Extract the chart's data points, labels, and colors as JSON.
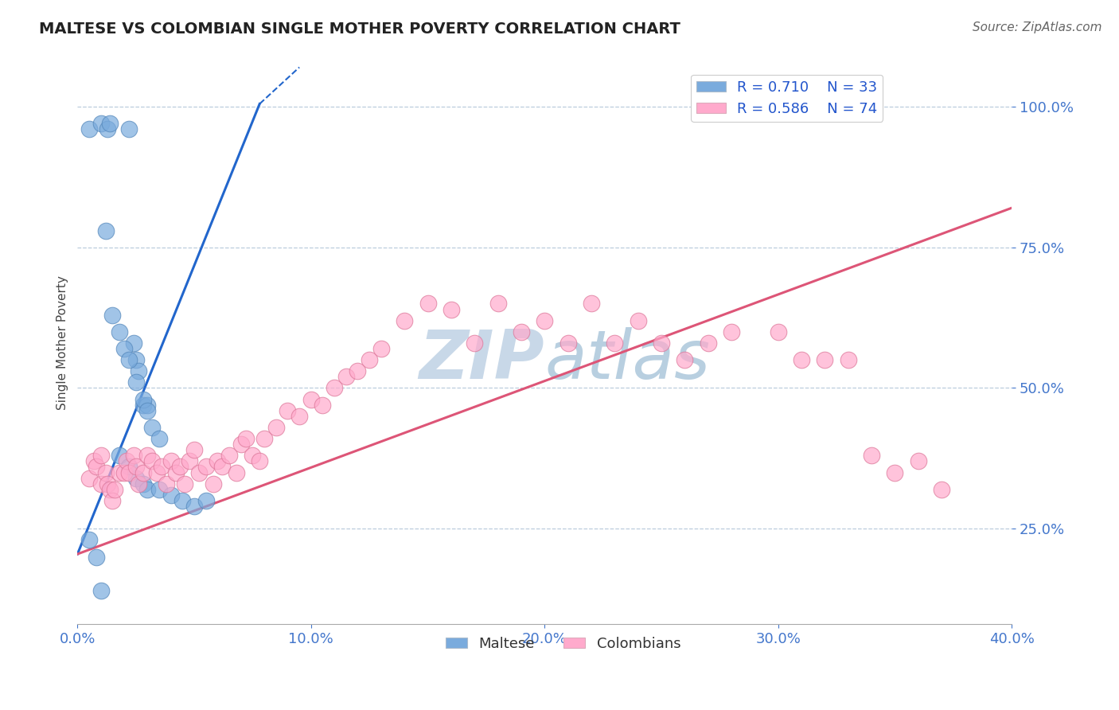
{
  "title": "MALTESE VS COLOMBIAN SINGLE MOTHER POVERTY CORRELATION CHART",
  "source_text": "Source: ZipAtlas.com",
  "ylabel": "Single Mother Poverty",
  "right_ytick_values": [
    0.25,
    0.5,
    0.75,
    1.0
  ],
  "xlim": [
    0.0,
    0.4
  ],
  "ylim": [
    0.08,
    1.08
  ],
  "xtick_values": [
    0.0,
    0.1,
    0.2,
    0.3,
    0.4
  ],
  "blue_R": 0.71,
  "blue_N": 33,
  "pink_R": 0.586,
  "pink_N": 74,
  "maltese_color": "#7aabdd",
  "colombian_color": "#ffaacc",
  "maltese_edge_color": "#5588bb",
  "colombian_edge_color": "#dd7799",
  "blue_line_color": "#2266cc",
  "pink_line_color": "#dd5577",
  "watermark_color_zip": "#c8d8e8",
  "watermark_color_atlas": "#c8d8e8",
  "background_color": "#ffffff",
  "grid_color": "#bbccdd",
  "legend_label_blue": "Maltese",
  "legend_label_pink": "Colombians",
  "blue_scatter_x": [
    0.005,
    0.01,
    0.013,
    0.014,
    0.022,
    0.024,
    0.025,
    0.026,
    0.028,
    0.03,
    0.012,
    0.015,
    0.018,
    0.02,
    0.022,
    0.025,
    0.028,
    0.03,
    0.032,
    0.035,
    0.018,
    0.022,
    0.025,
    0.028,
    0.03,
    0.035,
    0.04,
    0.045,
    0.05,
    0.055,
    0.005,
    0.008,
    0.01
  ],
  "blue_scatter_y": [
    0.96,
    0.97,
    0.96,
    0.97,
    0.96,
    0.58,
    0.55,
    0.53,
    0.47,
    0.47,
    0.78,
    0.63,
    0.6,
    0.57,
    0.55,
    0.51,
    0.48,
    0.46,
    0.43,
    0.41,
    0.38,
    0.36,
    0.34,
    0.33,
    0.32,
    0.32,
    0.31,
    0.3,
    0.29,
    0.3,
    0.23,
    0.2,
    0.14
  ],
  "pink_scatter_x": [
    0.005,
    0.007,
    0.008,
    0.01,
    0.01,
    0.012,
    0.013,
    0.014,
    0.015,
    0.016,
    0.018,
    0.02,
    0.021,
    0.022,
    0.024,
    0.025,
    0.026,
    0.028,
    0.03,
    0.032,
    0.034,
    0.036,
    0.038,
    0.04,
    0.042,
    0.044,
    0.046,
    0.048,
    0.05,
    0.052,
    0.055,
    0.058,
    0.06,
    0.062,
    0.065,
    0.068,
    0.07,
    0.072,
    0.075,
    0.078,
    0.08,
    0.085,
    0.09,
    0.095,
    0.1,
    0.105,
    0.11,
    0.115,
    0.12,
    0.125,
    0.13,
    0.14,
    0.15,
    0.16,
    0.17,
    0.18,
    0.19,
    0.2,
    0.21,
    0.22,
    0.23,
    0.24,
    0.25,
    0.26,
    0.27,
    0.28,
    0.3,
    0.31,
    0.32,
    0.33,
    0.34,
    0.35,
    0.36,
    0.37
  ],
  "pink_scatter_y": [
    0.34,
    0.37,
    0.36,
    0.38,
    0.33,
    0.35,
    0.33,
    0.32,
    0.3,
    0.32,
    0.35,
    0.35,
    0.37,
    0.35,
    0.38,
    0.36,
    0.33,
    0.35,
    0.38,
    0.37,
    0.35,
    0.36,
    0.33,
    0.37,
    0.35,
    0.36,
    0.33,
    0.37,
    0.39,
    0.35,
    0.36,
    0.33,
    0.37,
    0.36,
    0.38,
    0.35,
    0.4,
    0.41,
    0.38,
    0.37,
    0.41,
    0.43,
    0.46,
    0.45,
    0.48,
    0.47,
    0.5,
    0.52,
    0.53,
    0.55,
    0.57,
    0.62,
    0.65,
    0.64,
    0.58,
    0.65,
    0.6,
    0.62,
    0.58,
    0.65,
    0.58,
    0.62,
    0.58,
    0.55,
    0.58,
    0.6,
    0.6,
    0.55,
    0.55,
    0.55,
    0.38,
    0.35,
    0.37,
    0.32
  ],
  "blue_line_x0": 0.0,
  "blue_line_y0": 0.205,
  "blue_line_x1": 0.078,
  "blue_line_y1": 1.005,
  "blue_line_dash_x0": 0.078,
  "blue_line_dash_y0": 1.005,
  "blue_line_dash_x1": 0.095,
  "blue_line_dash_y1": 1.07,
  "pink_line_x0": 0.0,
  "pink_line_y0": 0.205,
  "pink_line_x1": 0.4,
  "pink_line_y1": 0.82
}
